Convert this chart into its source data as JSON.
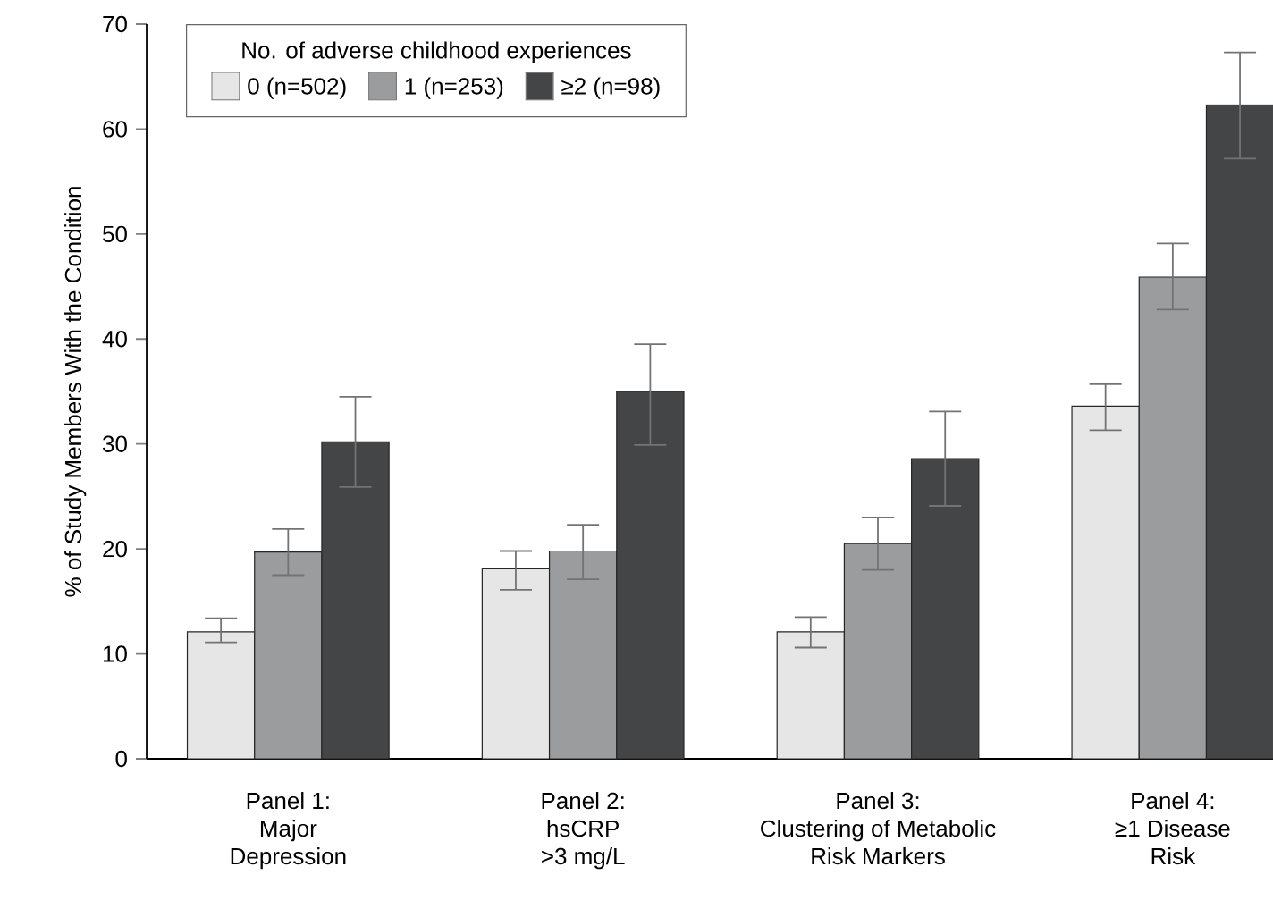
{
  "chart_data": {
    "type": "bar",
    "ylabel": "% of Study Members With the Condition",
    "legend_title": "No. of adverse childhood experiences",
    "legend": "top left",
    "categories": [
      "Panel 1:\nMajor\nDepression",
      "Panel 2:\nhsCRP\n>3 mg/L",
      "Panel 3:\nClustering of Metabolic\nRisk Markers",
      "Panel 4:\n≥1 Disease\nRisk"
    ],
    "ylim": [
      0,
      70
    ],
    "yticks": [
      0,
      10,
      20,
      30,
      40,
      50,
      60,
      70
    ],
    "series": [
      {
        "name": "0 (n=502)",
        "color": "#e6e6e6",
        "values": [
          12.1,
          18.1,
          12.1,
          33.6
        ],
        "errors": [
          [
            11.1,
            13.4
          ],
          [
            16.1,
            19.8
          ],
          [
            10.6,
            13.5
          ],
          [
            31.3,
            35.7
          ]
        ]
      },
      {
        "name": "1 (n=253)",
        "color": "#9a9c9e",
        "values": [
          19.7,
          19.8,
          20.5,
          45.9
        ],
        "errors": [
          [
            17.5,
            21.9
          ],
          [
            17.1,
            22.3
          ],
          [
            18.0,
            23.0
          ],
          [
            42.8,
            49.1
          ]
        ]
      },
      {
        "name": "≥2 (n=98)",
        "color": "#444547",
        "values": [
          30.2,
          35.0,
          28.6,
          62.3
        ],
        "errors": [
          [
            25.9,
            34.5
          ],
          [
            29.9,
            39.5
          ],
          [
            24.1,
            33.1
          ],
          [
            57.2,
            67.3
          ]
        ]
      }
    ]
  }
}
